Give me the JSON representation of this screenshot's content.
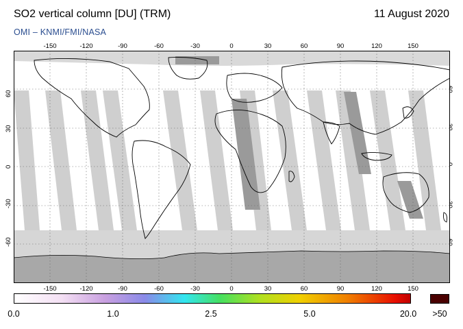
{
  "header": {
    "title": "SO2 vertical column [DU] (TRM)",
    "date": "11 August 2020",
    "credit": "OMI  –  KNMI/FMI/NASA"
  },
  "axes": {
    "lon_ticks": [
      "-150",
      "-120",
      "-90",
      "-60",
      "-30",
      "0",
      "30",
      "60",
      "90",
      "120",
      "150"
    ],
    "lat_ticks": [
      "60",
      "30",
      "0",
      "-30",
      "-60"
    ],
    "lon_range": [
      -180,
      180
    ],
    "lat_range": [
      -90,
      90
    ]
  },
  "colorbar": {
    "labels": [
      "0.0",
      "1.0",
      "2.5",
      "5.0",
      "20.0",
      ">50"
    ],
    "colors": [
      "#ffffff",
      "#f4e0f4",
      "#c9a0e0",
      "#8a8ae8",
      "#32e6f0",
      "#46e060",
      "#b0e020",
      "#f0d000",
      "#f08000",
      "#e81000",
      "#8b0000",
      "#4a0000"
    ]
  },
  "map": {
    "colors": {
      "ocean_gap": "#ffffff",
      "swath_light": "#cfcfcf",
      "swath_dark": "#9a9a9a",
      "antarctic": "#c8c8c8",
      "coast": "#000000"
    }
  }
}
